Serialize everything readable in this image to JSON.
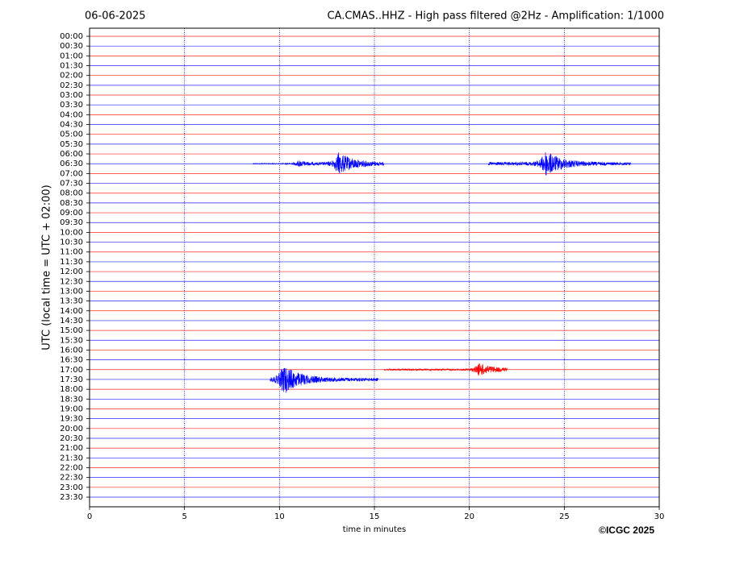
{
  "chart_data": {
    "type": "helicorder",
    "title": "06-06-2025",
    "subtitle": "CA.CMAS..HHZ - High pass filtered @2Hz - Amplification: 1/1000",
    "ylabel": "UTC (local time = UTC + 02:00)",
    "xlabel": "time in minutes",
    "credit": "©ICGC 2025",
    "categories": [
      "00:00",
      "00:30",
      "01:00",
      "01:30",
      "02:00",
      "02:30",
      "03:00",
      "03:30",
      "04:00",
      "04:30",
      "05:00",
      "05:30",
      "06:00",
      "06:30",
      "07:00",
      "07:30",
      "08:00",
      "08:30",
      "09:00",
      "09:30",
      "10:00",
      "10:30",
      "11:00",
      "11:30",
      "12:00",
      "12:30",
      "13:00",
      "13:30",
      "14:00",
      "14:30",
      "15:00",
      "15:30",
      "16:00",
      "16:30",
      "17:00",
      "17:30",
      "18:00",
      "18:30",
      "19:00",
      "19:30",
      "20:00",
      "20:30",
      "21:00",
      "21:30",
      "22:00",
      "22:30",
      "23:00",
      "23:30"
    ],
    "colors": [
      "#ff0000",
      "#0000ff"
    ],
    "xlim": [
      0,
      30
    ],
    "xticks": [
      0,
      5,
      10,
      15,
      20,
      25,
      30
    ],
    "grid": true,
    "events": [
      {
        "row": 13,
        "start": 8.6,
        "peak": 11.0,
        "end": 12.0,
        "amplitude": 0.35
      },
      {
        "row": 13,
        "start": 12.0,
        "peak": 13.1,
        "end": 15.5,
        "amplitude": 1.2
      },
      {
        "row": 13,
        "start": 21.0,
        "peak": 24.0,
        "end": 28.5,
        "amplitude": 1.4
      },
      {
        "row": 34,
        "start": 15.5,
        "peak": 20.5,
        "end": 22.0,
        "amplitude": 0.7
      },
      {
        "row": 35,
        "start": 9.5,
        "peak": 10.2,
        "end": 15.2,
        "amplitude": 1.6
      }
    ]
  }
}
